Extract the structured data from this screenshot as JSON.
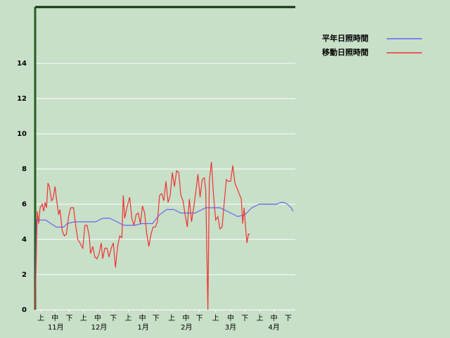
{
  "chart_data": {
    "type": "line",
    "xlim": [
      0,
      183
    ],
    "ylim": [
      0,
      17.2
    ],
    "yticks": [
      0,
      2,
      4,
      6,
      8,
      10,
      12,
      14
    ],
    "grid": true,
    "xticks": [
      {
        "value": 4,
        "label": "上"
      },
      {
        "value": 14,
        "label": "中"
      },
      {
        "value": 24,
        "label": "下"
      },
      {
        "value": 34,
        "label": "上"
      },
      {
        "value": 44,
        "label": "中"
      },
      {
        "value": 55,
        "label": "下"
      },
      {
        "value": 65.5,
        "label": "上"
      },
      {
        "value": 75.5,
        "label": "中"
      },
      {
        "value": 85,
        "label": "下"
      },
      {
        "value": 96,
        "label": "上"
      },
      {
        "value": 106,
        "label": "中"
      },
      {
        "value": 115.5,
        "label": "下"
      },
      {
        "value": 127,
        "label": "上"
      },
      {
        "value": 137.5,
        "label": "中"
      },
      {
        "value": 147.5,
        "label": "下"
      },
      {
        "value": 158,
        "label": "上"
      },
      {
        "value": 168,
        "label": "中"
      },
      {
        "value": 178,
        "label": "下"
      }
    ],
    "month_ticks": [
      {
        "value": 14.5,
        "label": "11月"
      },
      {
        "value": 45,
        "label": "12月"
      },
      {
        "value": 76,
        "label": "1月"
      },
      {
        "value": 106.5,
        "label": "2月"
      },
      {
        "value": 137.5,
        "label": "3月"
      },
      {
        "value": 168,
        "label": "4月"
      }
    ],
    "series": [
      {
        "name": "平年日照時間",
        "color": "#6666ee",
        "x": [
          0,
          1,
          7.5,
          11,
          15,
          20,
          22.5,
          27.5,
          42.5,
          47.5,
          52.5,
          57.5,
          62.5,
          70,
          75,
          82.5,
          87.5,
          92.5,
          97.5,
          102.5,
          112.5,
          120,
          130,
          137.5,
          142.5,
          147.5,
          152.5,
          157.5,
          170,
          172.5,
          175,
          177.5,
          180,
          181.5
        ],
        "values": [
          0,
          5.1,
          5.1,
          4.9,
          4.7,
          4.7,
          4.9,
          5.0,
          5.0,
          5.2,
          5.2,
          5.0,
          4.8,
          4.8,
          4.9,
          4.9,
          5.4,
          5.7,
          5.7,
          5.5,
          5.5,
          5.8,
          5.8,
          5.5,
          5.3,
          5.4,
          5.8,
          6.0,
          6.0,
          6.1,
          6.1,
          6.0,
          5.8,
          5.6
        ]
      },
      {
        "name": "移動日照時間",
        "color": "#ee3333",
        "x": [
          0,
          1.5,
          2.5,
          3.5,
          5,
          6,
          7,
          8,
          9,
          10,
          11.5,
          12.5,
          14,
          15,
          16.5,
          17.5,
          19,
          20.5,
          22,
          23.5,
          25,
          27,
          28.5,
          30,
          31.5,
          33.5,
          35,
          36.5,
          38,
          39,
          40.5,
          42,
          43.5,
          45,
          46.5,
          47.5,
          49,
          50.5,
          52,
          53.5,
          55,
          56.5,
          58,
          59.5,
          61,
          62,
          63,
          64.5,
          66.5,
          68,
          69.5,
          71,
          72.5,
          74,
          75.5,
          77,
          78.5,
          80,
          81.5,
          83,
          84.5,
          86,
          87.5,
          89,
          90.5,
          92,
          93.5,
          95,
          96.5,
          98,
          99.5,
          101,
          102.5,
          104,
          105.5,
          107,
          108.5,
          110,
          111.5,
          113,
          114.5,
          116,
          117.5,
          119,
          120,
          121.5,
          122.5,
          124,
          125.5,
          127,
          128.5,
          130,
          131.5,
          133,
          134.5,
          136,
          137.5,
          139,
          140.5,
          142,
          143.5,
          145,
          146,
          147,
          148,
          149,
          150,
          151
        ],
        "values": [
          0,
          5.6,
          4.9,
          5.8,
          6.0,
          5.6,
          6.1,
          5.8,
          7.2,
          7.0,
          6.2,
          6.3,
          7.0,
          6.3,
          5.4,
          5.7,
          4.5,
          4.2,
          4.3,
          5.3,
          5.8,
          5.8,
          4.8,
          4.0,
          3.8,
          3.5,
          4.8,
          4.8,
          4.2,
          3.2,
          3.6,
          3.0,
          2.9,
          3.2,
          3.8,
          2.9,
          3.5,
          3.5,
          3.0,
          3.5,
          3.8,
          2.4,
          3.6,
          4.2,
          4.1,
          6.5,
          5.2,
          5.8,
          6.4,
          5.2,
          4.8,
          5.4,
          5.5,
          4.9,
          5.9,
          5.5,
          4.3,
          3.6,
          4.3,
          4.7,
          4.7,
          5.0,
          6.5,
          6.6,
          6.2,
          7.3,
          6.1,
          6.5,
          7.8,
          7.0,
          7.9,
          7.8,
          6.5,
          6.2,
          5.4,
          4.7,
          6.3,
          5.0,
          5.8,
          6.7,
          7.7,
          6.4,
          7.4,
          7.5,
          6.8,
          0,
          7.3,
          8.4,
          6.5,
          5.1,
          5.3,
          4.6,
          4.7,
          6.1,
          7.4,
          7.3,
          7.3,
          8.2,
          7.2,
          6.9,
          6.6,
          6.3,
          4.9,
          5.8,
          4.7,
          3.8,
          4.3,
          4.3
        ]
      }
    ]
  }
}
